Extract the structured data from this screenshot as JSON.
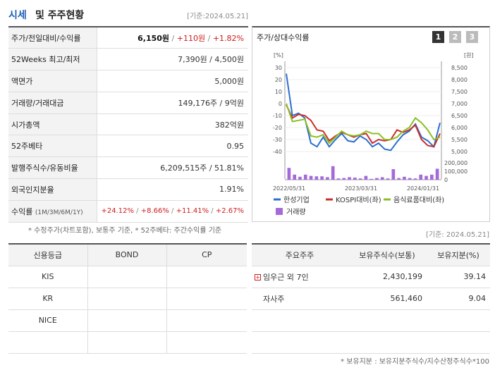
{
  "header": {
    "title_blue": "시세",
    "title_rest": "및 주주현황",
    "date": "[기준:2024.05.21]"
  },
  "info_rows": [
    {
      "label": "주가/전일대비/수익률"
    },
    {
      "label": "52Weeks 최고/최저",
      "value": "7,390원 / 4,500원"
    },
    {
      "label": "액면가",
      "value": "5,000원"
    },
    {
      "label": "거래량/거래대금",
      "value": "149,176주 / 9억원"
    },
    {
      "label": "시가총액",
      "value": "382억원"
    },
    {
      "label": "52주베타",
      "value": "0.95"
    },
    {
      "label": "발행주식수/유동비율",
      "value": "6,209,515주 / 51.81%"
    },
    {
      "label": "외국인지분율",
      "value": "1.91%"
    },
    {
      "label": "수익률",
      "label_sub": "(1M/3M/6M/1Y)"
    }
  ],
  "price": {
    "current": "6,150원",
    "change": "+110원",
    "rate": "+1.82%"
  },
  "returns": {
    "m1": "+24.12%",
    "m3": "+8.66%",
    "m6": "+11.41%",
    "y1": "+2.67%"
  },
  "note1": "* 수정주가(차트포함), 보통주 기준, * 52주베타: 주간수익률 기준",
  "chart_panel": {
    "title": "주가/상대수익률",
    "pages": [
      "1",
      "2",
      "3"
    ],
    "colors": {
      "stock": "#2b6fcf",
      "kospi": "#c8302c",
      "sector": "#8cbf26",
      "volume": "#a46ad8"
    }
  },
  "chart_data": {
    "type": "line",
    "left_unit": "[%]",
    "right_unit": "[원]",
    "left_ticks": [
      "30",
      "20",
      "10",
      "0",
      "-10",
      "-20",
      "-30",
      "-40"
    ],
    "right_ticks": [
      "8,500",
      "8,000",
      "7,500",
      "7,000",
      "6,500",
      "6,000",
      "5,500",
      "5,000"
    ],
    "volume_ticks": [
      "200,000",
      "100,000",
      "0"
    ],
    "x_labels": [
      "2022/05/31",
      "2023/03/31",
      "2024/01/31"
    ],
    "ylim_left": [
      -40,
      30
    ],
    "ylim_volume": [
      0,
      200000
    ],
    "series": [
      {
        "name": "한성기업",
        "values": [
          25,
          -10,
          -8,
          -12,
          -33,
          -36,
          -28,
          -36,
          -30,
          -25,
          -31,
          -32,
          -27,
          -30,
          -36,
          -33,
          -38,
          -39,
          -32,
          -26,
          -23,
          -17,
          -28,
          -31,
          -36,
          -16
        ]
      },
      {
        "name": "KOSPI대비(좌)",
        "values": [
          -1,
          -12,
          -9,
          -10,
          -14,
          -22,
          -23,
          -31,
          -27,
          -24,
          -26,
          -28,
          -26,
          -25,
          -33,
          -30,
          -31,
          -30,
          -22,
          -24,
          -22,
          -18,
          -30,
          -35,
          -36,
          -25
        ]
      },
      {
        "name": "음식료품대비(좌)",
        "values": [
          0,
          -15,
          -14,
          -13,
          -27,
          -28,
          -26,
          -33,
          -28,
          -23,
          -26,
          -27,
          -26,
          -23,
          -25,
          -25,
          -30,
          -30,
          -28,
          -23,
          -20,
          -12,
          -16,
          -22,
          -30,
          -28
        ]
      }
    ],
    "volume": {
      "name": "거래량",
      "values": [
        140000,
        60000,
        35000,
        60000,
        45000,
        40000,
        40000,
        30000,
        160000,
        15000,
        20000,
        30000,
        25000,
        15000,
        45000,
        10000,
        20000,
        30000,
        15000,
        125000,
        20000,
        35000,
        20000,
        15000,
        60000,
        45000,
        60000,
        130000
      ]
    }
  },
  "date2": "[기준: 2024.05.21]",
  "credit": {
    "headers": [
      "신용등급",
      "BOND",
      "CP"
    ],
    "rows": [
      {
        "agency": "KIS",
        "bond": "",
        "cp": ""
      },
      {
        "agency": "KR",
        "bond": "",
        "cp": ""
      },
      {
        "agency": "NICE",
        "bond": "",
        "cp": ""
      },
      {
        "agency": "",
        "bond": "",
        "cp": ""
      }
    ]
  },
  "holders": {
    "headers": [
      "주요주주",
      "보유주식수(보통)",
      "보유지분(%)"
    ],
    "rows": [
      {
        "name": "임우근 외 7인",
        "shares": "2,430,199",
        "pct": "39.14"
      },
      {
        "name": "자사주",
        "shares": "561,460",
        "pct": "9.04"
      }
    ]
  },
  "note2": "* 보유지분 : 보유지분주식수/지수산정주식수*100"
}
